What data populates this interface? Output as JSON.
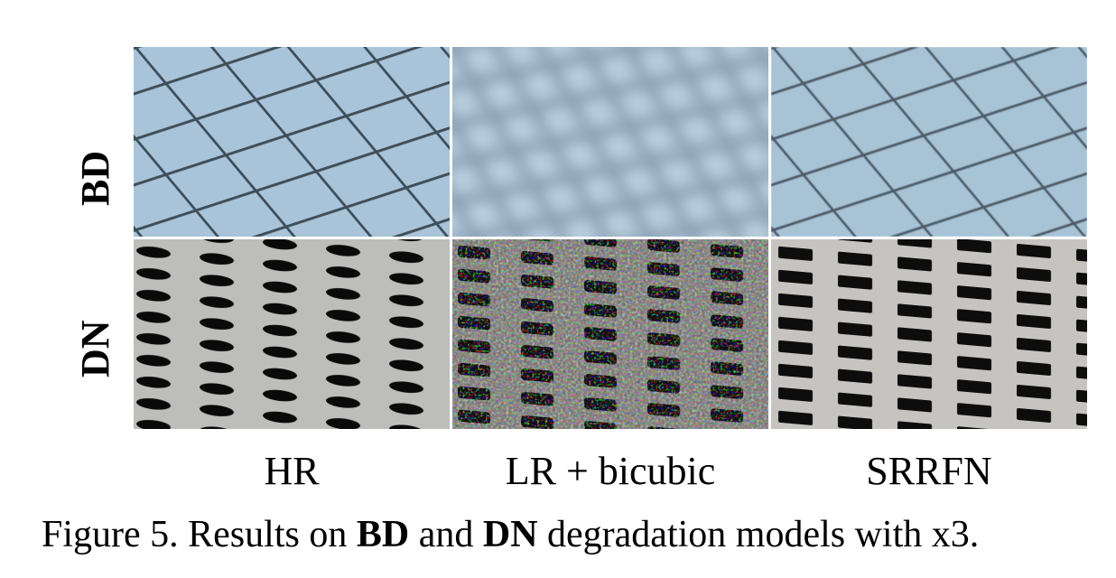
{
  "rows": [
    {
      "label": "BD"
    },
    {
      "label": "DN"
    }
  ],
  "columns": [
    {
      "label": "HR"
    },
    {
      "label": "LR + bicubic"
    },
    {
      "label": "SRRFN"
    }
  ],
  "caption": {
    "prefix": "Figure 5. Results on ",
    "bold1": "BD",
    "mid": " and ",
    "bold2": "DN",
    "suffix": " degradation models with x3."
  }
}
